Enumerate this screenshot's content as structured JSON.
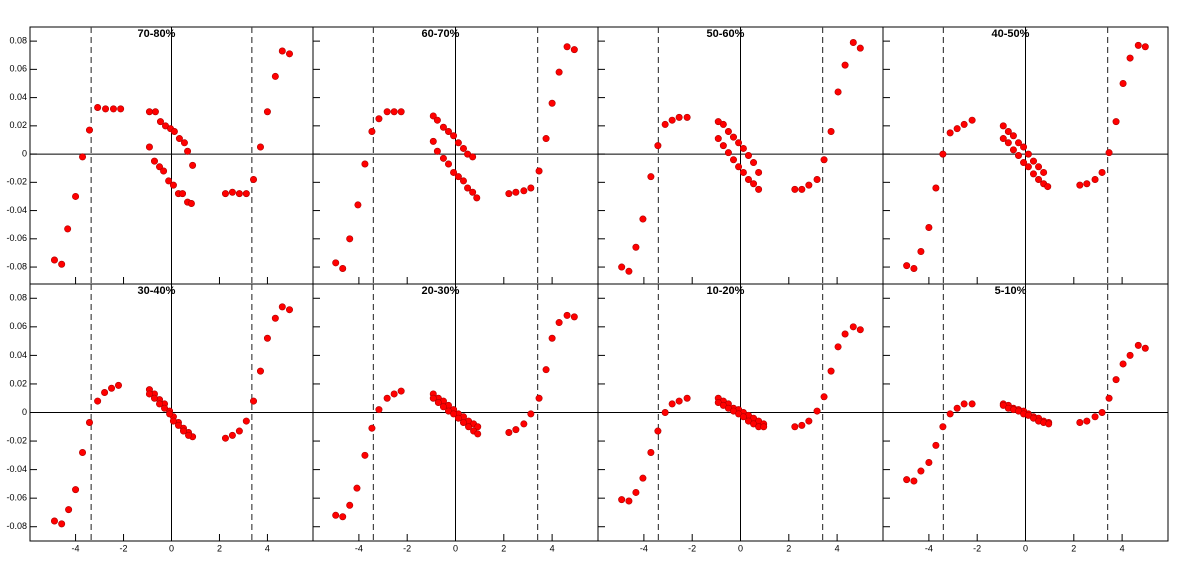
{
  "chart_data": [
    {
      "type": "scatter",
      "title": "70-80%",
      "color": "#ff0000",
      "xlim": [
        -5.9,
        5.9
      ],
      "ylim": [
        -0.092,
        0.09
      ],
      "vlines": [
        -3.35,
        3.35
      ],
      "yticks": [
        -0.08,
        -0.06,
        -0.04,
        -0.02,
        0,
        0.02,
        0.04,
        0.06,
        0.08
      ],
      "x": [
        -4.88,
        -4.58,
        -4.33,
        -4.0,
        -3.71,
        -3.42,
        -3.08,
        -2.75,
        -2.42,
        -2.12,
        -0.92,
        -0.67,
        -0.46,
        -0.25,
        -0.04,
        0.12,
        0.33,
        0.54,
        0.67,
        0.88,
        -0.92,
        -0.71,
        -0.5,
        -0.33,
        -0.12,
        0.08,
        0.29,
        0.46,
        0.67,
        0.83,
        2.25,
        2.54,
        2.83,
        3.12,
        3.42,
        3.71,
        4.0,
        4.33,
        4.62,
        4.92
      ],
      "values": [
        -0.075,
        -0.078,
        -0.053,
        -0.03,
        -0.002,
        0.017,
        0.033,
        0.032,
        0.032,
        0.032,
        0.03,
        0.03,
        0.023,
        0.02,
        0.018,
        0.016,
        0.011,
        0.008,
        0.002,
        -0.008,
        0.005,
        -0.005,
        -0.009,
        -0.012,
        -0.019,
        -0.022,
        -0.028,
        -0.028,
        -0.034,
        -0.035,
        -0.028,
        -0.027,
        -0.028,
        -0.028,
        -0.018,
        0.005,
        0.03,
        0.055,
        0.073,
        0.071
      ]
    },
    {
      "type": "scatter",
      "title": "60-70%",
      "color": "#ff0000",
      "xlim": [
        -5.9,
        5.9
      ],
      "ylim": [
        -0.092,
        0.09
      ],
      "vlines": [
        -3.4,
        3.4
      ],
      "x": [
        -4.96,
        -4.67,
        -4.38,
        -4.04,
        -3.75,
        -3.46,
        -3.17,
        -2.83,
        -2.54,
        -2.25,
        -0.92,
        -0.75,
        -0.5,
        -0.29,
        -0.08,
        0.12,
        0.33,
        0.5,
        0.71,
        -0.92,
        -0.75,
        -0.5,
        -0.29,
        -0.08,
        0.12,
        0.33,
        0.5,
        0.71,
        0.88,
        2.21,
        2.5,
        2.83,
        3.12,
        3.46,
        3.75,
        4.0,
        4.29,
        4.62,
        4.92
      ],
      "values": [
        -0.077,
        -0.081,
        -0.06,
        -0.036,
        -0.007,
        0.016,
        0.025,
        0.03,
        0.03,
        0.03,
        0.027,
        0.024,
        0.019,
        0.016,
        0.013,
        0.008,
        0.004,
        0.0,
        -0.002,
        0.009,
        0.002,
        -0.003,
        -0.007,
        -0.013,
        -0.016,
        -0.019,
        -0.024,
        -0.027,
        -0.031,
        -0.028,
        -0.027,
        -0.026,
        -0.024,
        -0.012,
        0.011,
        0.036,
        0.058,
        0.076,
        0.074
      ]
    },
    {
      "type": "scatter",
      "title": "50-60%",
      "color": "#ff0000",
      "xlim": [
        -5.9,
        5.9
      ],
      "ylim": [
        -0.092,
        0.09
      ],
      "vlines": [
        -3.4,
        3.4
      ],
      "x": [
        -4.92,
        -4.62,
        -4.33,
        -4.04,
        -3.71,
        -3.42,
        -3.12,
        -2.83,
        -2.54,
        -2.21,
        -0.92,
        -0.71,
        -0.5,
        -0.29,
        -0.08,
        0.12,
        0.33,
        0.54,
        0.75,
        -0.92,
        -0.71,
        -0.5,
        -0.29,
        -0.08,
        0.12,
        0.33,
        0.54,
        0.75,
        2.25,
        2.54,
        2.83,
        3.17,
        3.46,
        3.75,
        4.04,
        4.33,
        4.67,
        4.96
      ],
      "values": [
        -0.08,
        -0.083,
        -0.066,
        -0.046,
        -0.016,
        0.006,
        0.021,
        0.024,
        0.026,
        0.026,
        0.023,
        0.021,
        0.016,
        0.012,
        0.008,
        0.004,
        -0.001,
        -0.006,
        -0.013,
        0.011,
        0.006,
        0.001,
        -0.004,
        -0.009,
        -0.013,
        -0.018,
        -0.021,
        -0.025,
        -0.025,
        -0.025,
        -0.022,
        -0.018,
        -0.004,
        0.016,
        0.044,
        0.063,
        0.079,
        0.075
      ]
    },
    {
      "type": "scatter",
      "title": "40-50%",
      "color": "#ff0000",
      "xlim": [
        -5.9,
        5.9
      ],
      "ylim": [
        -0.092,
        0.09
      ],
      "vlines": [
        -3.4,
        3.4
      ],
      "x": [
        -4.92,
        -4.62,
        -4.33,
        -4.0,
        -3.71,
        -3.42,
        -3.12,
        -2.83,
        -2.54,
        -2.21,
        -0.92,
        -0.71,
        -0.5,
        -0.29,
        -0.08,
        0.12,
        0.33,
        0.54,
        0.75,
        -0.92,
        -0.71,
        -0.5,
        -0.29,
        -0.08,
        0.12,
        0.33,
        0.54,
        0.75,
        0.92,
        2.25,
        2.54,
        2.88,
        3.17,
        3.46,
        3.75,
        4.04,
        4.33,
        4.67,
        4.96
      ],
      "values": [
        -0.079,
        -0.081,
        -0.069,
        -0.052,
        -0.024,
        0.0,
        0.015,
        0.018,
        0.021,
        0.024,
        0.02,
        0.016,
        0.013,
        0.008,
        0.005,
        0.0,
        -0.005,
        -0.009,
        -0.013,
        0.011,
        0.008,
        0.003,
        -0.001,
        -0.006,
        -0.009,
        -0.014,
        -0.018,
        -0.021,
        -0.023,
        -0.022,
        -0.021,
        -0.018,
        -0.013,
        0.001,
        0.023,
        0.05,
        0.068,
        0.077,
        0.076
      ]
    },
    {
      "type": "scatter",
      "title": "30-40%",
      "color": "#ff0000",
      "xlim": [
        -5.9,
        5.9
      ],
      "ylim": [
        -0.09,
        0.09
      ],
      "vlines": [
        -3.35,
        3.35
      ],
      "xticks": [
        -4,
        -2,
        0,
        2,
        4
      ],
      "yticks": [
        -0.08,
        -0.06,
        -0.04,
        -0.02,
        0,
        0.02,
        0.04,
        0.06,
        0.08
      ],
      "x": [
        -4.88,
        -4.58,
        -4.29,
        -4.0,
        -3.71,
        -3.42,
        -3.08,
        -2.79,
        -2.5,
        -2.21,
        -0.92,
        -0.71,
        -0.5,
        -0.29,
        -0.08,
        0.08,
        0.29,
        0.5,
        0.71,
        0.88,
        -0.92,
        -0.71,
        -0.5,
        -0.29,
        -0.08,
        0.08,
        0.29,
        0.5,
        0.71,
        2.25,
        2.54,
        2.83,
        3.12,
        3.42,
        3.71,
        4.0,
        4.33,
        4.62,
        4.92
      ],
      "values": [
        -0.076,
        -0.078,
        -0.068,
        -0.054,
        -0.028,
        -0.007,
        0.008,
        0.014,
        0.017,
        0.019,
        0.016,
        0.013,
        0.009,
        0.006,
        0.001,
        -0.003,
        -0.007,
        -0.011,
        -0.014,
        -0.017,
        0.013,
        0.01,
        0.006,
        0.003,
        -0.001,
        -0.006,
        -0.009,
        -0.013,
        -0.016,
        -0.018,
        -0.016,
        -0.013,
        -0.006,
        0.008,
        0.029,
        0.052,
        0.066,
        0.074,
        0.072
      ]
    },
    {
      "type": "scatter",
      "title": "20-30%",
      "color": "#ff0000",
      "xlim": [
        -5.9,
        5.9
      ],
      "ylim": [
        -0.09,
        0.09
      ],
      "vlines": [
        -3.4,
        3.4
      ],
      "xticks": [
        -4,
        -2,
        0,
        2,
        4
      ],
      "x": [
        -4.96,
        -4.67,
        -4.38,
        -4.08,
        -3.75,
        -3.46,
        -3.17,
        -2.83,
        -2.54,
        -2.25,
        -0.92,
        -0.71,
        -0.5,
        -0.29,
        -0.08,
        0.12,
        0.33,
        0.54,
        0.75,
        0.92,
        -0.92,
        -0.71,
        -0.5,
        -0.29,
        -0.08,
        0.12,
        0.33,
        0.54,
        0.75,
        0.92,
        2.21,
        2.5,
        2.83,
        3.12,
        3.46,
        3.75,
        4.0,
        4.29,
        4.62,
        4.92
      ],
      "values": [
        -0.072,
        -0.073,
        -0.065,
        -0.053,
        -0.03,
        -0.011,
        0.002,
        0.01,
        0.013,
        0.015,
        0.013,
        0.01,
        0.008,
        0.005,
        0.002,
        -0.001,
        -0.003,
        -0.006,
        -0.008,
        -0.01,
        0.01,
        0.007,
        0.004,
        0.001,
        -0.001,
        -0.004,
        -0.007,
        -0.01,
        -0.013,
        -0.015,
        -0.014,
        -0.012,
        -0.008,
        -0.001,
        0.01,
        0.03,
        0.052,
        0.063,
        0.068,
        0.067
      ]
    },
    {
      "type": "scatter",
      "title": "10-20%",
      "color": "#ff0000",
      "xlim": [
        -5.9,
        5.9
      ],
      "ylim": [
        -0.09,
        0.09
      ],
      "vlines": [
        -3.4,
        3.4
      ],
      "xticks": [
        -4,
        -2,
        0,
        2,
        4
      ],
      "x": [
        -4.92,
        -4.62,
        -4.33,
        -4.04,
        -3.71,
        -3.42,
        -3.12,
        -2.83,
        -2.54,
        -2.21,
        -0.92,
        -0.71,
        -0.5,
        -0.29,
        -0.08,
        0.12,
        0.33,
        0.54,
        0.75,
        0.96,
        -0.92,
        -0.71,
        -0.5,
        -0.29,
        -0.08,
        0.12,
        0.33,
        0.54,
        0.75,
        0.96,
        2.25,
        2.54,
        2.83,
        3.17,
        3.46,
        3.75,
        4.04,
        4.33,
        4.67,
        4.96
      ],
      "values": [
        -0.061,
        -0.062,
        -0.056,
        -0.046,
        -0.028,
        -0.013,
        0.0,
        0.006,
        0.008,
        0.01,
        0.01,
        0.008,
        0.006,
        0.003,
        0.002,
        0.0,
        -0.002,
        -0.004,
        -0.006,
        -0.008,
        0.007,
        0.005,
        0.003,
        0.001,
        -0.001,
        -0.003,
        -0.006,
        -0.008,
        -0.01,
        -0.01,
        -0.01,
        -0.009,
        -0.006,
        0.001,
        0.011,
        0.029,
        0.046,
        0.055,
        0.06,
        0.058
      ]
    },
    {
      "type": "scatter",
      "title": "5-10%",
      "color": "#ff0000",
      "xlim": [
        -5.9,
        5.9
      ],
      "ylim": [
        -0.09,
        0.09
      ],
      "vlines": [
        -3.4,
        3.4
      ],
      "xticks": [
        -4,
        -2,
        0,
        2,
        4
      ],
      "x": [
        -4.92,
        -4.62,
        -4.33,
        -4.0,
        -3.71,
        -3.42,
        -3.12,
        -2.83,
        -2.54,
        -2.21,
        -0.92,
        -0.71,
        -0.5,
        -0.29,
        -0.08,
        0.12,
        0.33,
        0.54,
        0.75,
        0.96,
        -0.92,
        -0.71,
        -0.5,
        -0.29,
        -0.08,
        0.12,
        0.33,
        0.54,
        0.75,
        0.96,
        2.25,
        2.54,
        2.88,
        3.17,
        3.46,
        3.75,
        4.04,
        4.33,
        4.67,
        4.96
      ],
      "values": [
        -0.047,
        -0.048,
        -0.041,
        -0.035,
        -0.023,
        -0.01,
        -0.001,
        0.003,
        0.006,
        0.006,
        0.006,
        0.005,
        0.003,
        0.002,
        0.001,
        -0.001,
        -0.003,
        -0.004,
        -0.006,
        -0.007,
        0.005,
        0.003,
        0.002,
        0.001,
        -0.001,
        -0.002,
        -0.004,
        -0.006,
        -0.007,
        -0.008,
        -0.007,
        -0.006,
        -0.003,
        0.0,
        0.01,
        0.023,
        0.034,
        0.04,
        0.047,
        0.045
      ]
    }
  ]
}
